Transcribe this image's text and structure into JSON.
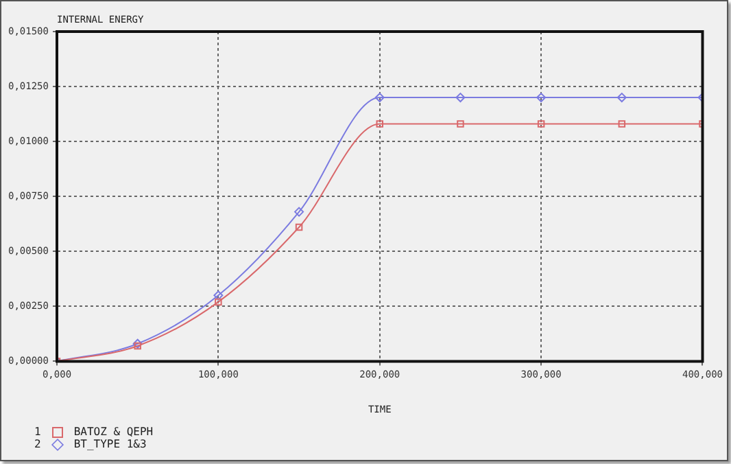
{
  "chart_data": {
    "type": "line",
    "ylabel": "INTERNAL ENERGY",
    "xlabel": "TIME",
    "x": [
      0,
      50,
      100,
      150,
      200,
      250,
      300,
      350,
      400
    ],
    "annotations": [
      "1",
      "2"
    ],
    "series": [
      {
        "name": "BATOZ & QEPH",
        "color": "#d9686b",
        "marker": "square",
        "values": [
          0,
          0.0007,
          0.0027,
          0.0061,
          0.0108,
          0.0108,
          0.0108,
          0.0108,
          0.0108
        ]
      },
      {
        "name": "BT_TYPE 1&3",
        "color": "#7b7be0",
        "marker": "diamond",
        "values": [
          0,
          0.0008,
          0.003,
          0.0068,
          0.012,
          0.012,
          0.012,
          0.012,
          0.012
        ]
      }
    ],
    "xlim": [
      0,
      400
    ],
    "xticks": [
      {
        "value": 0,
        "label": "0,000"
      },
      {
        "value": 100,
        "label": "100,000"
      },
      {
        "value": 200,
        "label": "200,000"
      },
      {
        "value": 300,
        "label": "300,000"
      },
      {
        "value": 400,
        "label": "400,000"
      }
    ],
    "ylim": [
      0,
      0.015
    ],
    "yticks": [
      {
        "value": 0,
        "label": "0,00000"
      },
      {
        "value": 0.0025,
        "label": "0,00250"
      },
      {
        "value": 0.005,
        "label": "0,00500"
      },
      {
        "value": 0.0075,
        "label": "0,00750"
      },
      {
        "value": 0.01,
        "label": "0,01000"
      },
      {
        "value": 0.0125,
        "label": "0,01250"
      },
      {
        "value": 0.015,
        "label": "0,01500"
      }
    ],
    "grid": true,
    "legend": "bottom left",
    "line_style": "solid"
  }
}
